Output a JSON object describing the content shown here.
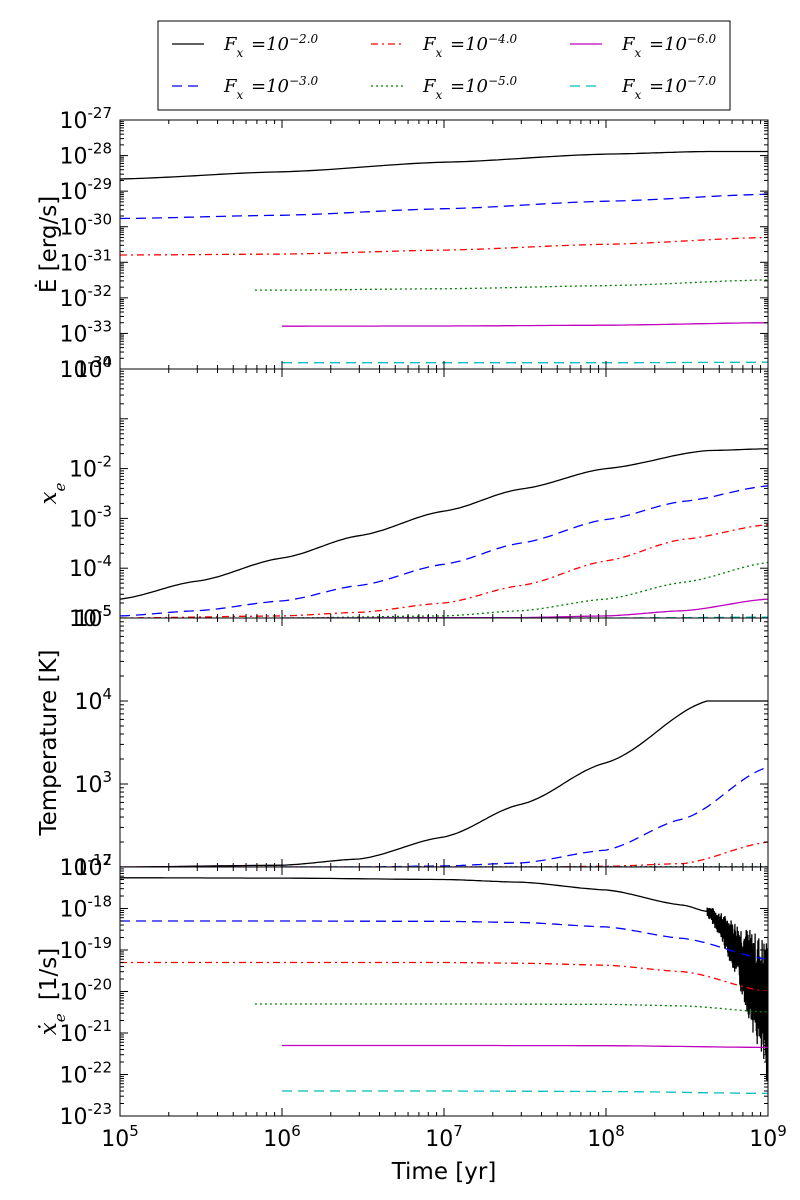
{
  "chart_data": {
    "type": "line",
    "legend": {
      "placement": "top-center",
      "columns": 3,
      "entries": [
        {
          "label": "F_x = 10^{-2.0}",
          "base": "F",
          "sub": "x",
          "exp": "−2.0",
          "color": "#000000",
          "dash": "solid"
        },
        {
          "label": "F_x = 10^{-3.0}",
          "base": "F",
          "sub": "x",
          "exp": "−3.0",
          "color": "#0000ff",
          "dash": "dashed"
        },
        {
          "label": "F_x = 10^{-4.0}",
          "base": "F",
          "sub": "x",
          "exp": "−4.0",
          "color": "#ff0000",
          "dash": "dashdot"
        },
        {
          "label": "F_x = 10^{-5.0}",
          "base": "F",
          "sub": "x",
          "exp": "−5.0",
          "color": "#008000",
          "dash": "dotted"
        },
        {
          "label": "F_x = 10^{-6.0}",
          "base": "F",
          "sub": "x",
          "exp": "−6.0",
          "color": "#bf00bf",
          "dash": "solid"
        },
        {
          "label": "F_x = 10^{-7.0}",
          "base": "F",
          "sub": "x",
          "exp": "−7.0",
          "color": "#00bfbf",
          "dash": "dashed"
        }
      ]
    },
    "xlabel": "Time [yr]",
    "xscale": "log",
    "xlim": [
      100000,
      1000000000
    ],
    "xticks": [
      {
        "value": 100000,
        "label": "10",
        "exp": "5"
      },
      {
        "value": 1000000,
        "label": "10",
        "exp": "6"
      },
      {
        "value": 10000000,
        "label": "10",
        "exp": "7"
      },
      {
        "value": 100000000,
        "label": "10",
        "exp": "8"
      },
      {
        "value": 1000000000,
        "label": "10",
        "exp": "9"
      }
    ],
    "panels": [
      {
        "ylabel": "Ė [erg/s]",
        "yscale": "log",
        "ylim": [
          1e-34,
          1e-27
        ],
        "yticks": [
          {
            "value": 1e-27,
            "exp": "-27"
          },
          {
            "value": 1e-28,
            "exp": "-28"
          },
          {
            "value": 1e-29,
            "exp": "-29"
          },
          {
            "value": 1e-30,
            "exp": "-30"
          },
          {
            "value": 1e-31,
            "exp": "-31"
          },
          {
            "value": 1e-32,
            "exp": "-32"
          },
          {
            "value": 1e-33,
            "exp": "-33"
          },
          {
            "value": 1e-34,
            "exp": "-34"
          }
        ],
        "series": [
          {
            "legend_index": 0,
            "x": [
              100000,
              1000000,
              10000000,
              100000000,
              420000000,
              1000000000
            ],
            "y": [
              2.2e-29,
              3.5e-29,
              6.5e-29,
              1.1e-28,
              1.3e-28,
              1.3e-28
            ]
          },
          {
            "legend_index": 1,
            "x": [
              100000,
              1000000,
              10000000,
              100000000,
              1000000000
            ],
            "y": [
              1.7e-30,
              2.1e-30,
              3.2e-30,
              5.2e-30,
              8.2e-30
            ]
          },
          {
            "legend_index": 2,
            "x": [
              100000,
              1000000,
              10000000,
              100000000,
              1000000000
            ],
            "y": [
              1.6e-31,
              1.7e-31,
              2.2e-31,
              3.2e-31,
              5e-31
            ]
          },
          {
            "legend_index": 3,
            "x": [
              680000,
              1000000,
              10000000,
              100000000,
              1000000000
            ],
            "y": [
              1.65e-32,
              1.65e-32,
              1.8e-32,
              2.2e-32,
              3.2e-32
            ]
          },
          {
            "legend_index": 4,
            "x": [
              1000000,
              10000000,
              100000000,
              1000000000
            ],
            "y": [
              1.6e-33,
              1.62e-33,
              1.7e-33,
              2e-33
            ]
          },
          {
            "legend_index": 5,
            "x": [
              1000000,
              10000000,
              100000000,
              1000000000
            ],
            "y": [
              1.5e-34,
              1.5e-34,
              1.5e-34,
              1.55e-34
            ]
          }
        ]
      },
      {
        "ylabel": "x_e",
        "ylabel_base": "x",
        "ylabel_sub": "e",
        "yscale": "log",
        "ylim": [
          1e-05,
          1
        ],
        "yticks": [
          {
            "value": 1,
            "exp": "0"
          },
          {
            "value": 0.01,
            "exp": "-2"
          },
          {
            "value": 0.001,
            "exp": "-3"
          },
          {
            "value": 0.0001,
            "exp": "-4"
          },
          {
            "value": 1e-05,
            "exp": "-5"
          }
        ],
        "series": [
          {
            "legend_index": 0,
            "x": [
              100000,
              300000,
              1000000,
              3000000,
              10000000,
              30000000,
              100000000,
              420000000,
              1000000000
            ],
            "y": [
              2.4e-05,
              5.5e-05,
              0.00016,
              0.00045,
              0.0014,
              0.0039,
              0.01,
              0.023,
              0.025
            ]
          },
          {
            "legend_index": 1,
            "x": [
              100000,
              300000,
              1000000,
              3000000,
              10000000,
              30000000,
              100000000,
              300000000,
              1000000000
            ],
            "y": [
              1.1e-05,
              1.4e-05,
              2.2e-05,
              4.5e-05,
              0.00012,
              0.00032,
              0.00095,
              0.0022,
              0.0045
            ]
          },
          {
            "legend_index": 2,
            "x": [
              100000,
              1000000,
              3000000,
              10000000,
              30000000,
              100000000,
              300000000,
              1000000000
            ],
            "y": [
              1e-05,
              1.1e-05,
              1.3e-05,
              2e-05,
              4.5e-05,
              0.00014,
              0.00038,
              0.00075
            ]
          },
          {
            "legend_index": 3,
            "x": [
              1000000,
              10000000,
              30000000,
              100000000,
              300000000,
              1000000000
            ],
            "y": [
              1e-05,
              1.1e-05,
              1.4e-05,
              2.4e-05,
              5.2e-05,
              0.00013
            ]
          },
          {
            "legend_index": 4,
            "x": [
              1000000,
              30000000,
              100000000,
              300000000,
              1000000000
            ],
            "y": [
              1e-05,
              1.02e-05,
              1.1e-05,
              1.4e-05,
              2.4e-05
            ]
          },
          {
            "legend_index": 5,
            "x": [
              1000000,
              100000000,
              1000000000
            ],
            "y": [
              1e-05,
              1e-05,
              1.04e-05
            ]
          }
        ]
      },
      {
        "ylabel": "Temperature [K]",
        "yscale": "log",
        "ylim": [
          100,
          100000
        ],
        "yticks": [
          {
            "value": 100000,
            "exp": "5"
          },
          {
            "value": 10000,
            "exp": "4"
          },
          {
            "value": 1000,
            "exp": "3"
          },
          {
            "value": 100,
            "exp": "2"
          }
        ],
        "series": [
          {
            "legend_index": 0,
            "x": [
              100000,
              1000000,
              3000000,
              10000000,
              30000000,
              100000000,
              420000000,
              1000000000
            ],
            "y": [
              100,
              105,
              125,
              230,
              570,
              1800,
              10000,
              10000
            ]
          },
          {
            "legend_index": 1,
            "x": [
              100000,
              3000000,
              10000000,
              30000000,
              100000000,
              300000000,
              1000000000
            ],
            "y": [
              100,
              100,
              103,
              112,
              160,
              380,
              1600
            ]
          },
          {
            "legend_index": 2,
            "x": [
              100000,
              30000000,
              100000000,
              300000000,
              1000000000
            ],
            "y": [
              100,
              100,
              102,
              110,
              200
            ]
          },
          {
            "legend_index": 3,
            "x": [
              680000,
              1000000000
            ],
            "y": [
              100,
              101
            ]
          },
          {
            "legend_index": 4,
            "x": [
              1000000,
              1000000000
            ],
            "y": [
              100,
              100
            ]
          },
          {
            "legend_index": 5,
            "x": [
              1000000,
              1000000000
            ],
            "y": [
              100,
              100
            ]
          }
        ]
      },
      {
        "ylabel": "ẋ_e [1/s]",
        "ylabel_base": "ẋ",
        "ylabel_sub": "e",
        "ylabel_unit": "[1/s]",
        "yscale": "log",
        "ylim": [
          1e-23,
          1e-17
        ],
        "yticks": [
          {
            "value": 1e-17,
            "exp": "-17"
          },
          {
            "value": 1e-18,
            "exp": "-18"
          },
          {
            "value": 1e-19,
            "exp": "-19"
          },
          {
            "value": 1e-20,
            "exp": "-20"
          },
          {
            "value": 1e-21,
            "exp": "-21"
          },
          {
            "value": 1e-22,
            "exp": "-22"
          },
          {
            "value": 1e-23,
            "exp": "-23"
          }
        ],
        "series": [
          {
            "legend_index": 0,
            "x": [
              100000,
              1000000,
              10000000,
              30000000,
              100000000,
              300000000,
              420000000
            ],
            "y": [
              5.5e-18,
              5.4e-18,
              5e-18,
              4.3e-18,
              2.8e-18,
              1.2e-18,
              8.5e-19
            ],
            "noisy_tail": {
              "x_start": 420000000,
              "x_end": 1000000000,
              "center_start": 8.5e-19,
              "center_end": 3e-21,
              "spread_decades_start": 0.15,
              "spread_decades_end": 1.8
            }
          },
          {
            "legend_index": 1,
            "x": [
              100000,
              1000000,
              10000000,
              30000000,
              100000000,
              300000000,
              1000000000
            ],
            "y": [
              5e-19,
              5e-19,
              4.9e-19,
              4.6e-19,
              3.6e-19,
              1.9e-19,
              6e-20
            ]
          },
          {
            "legend_index": 2,
            "x": [
              100000,
              1000000,
              10000000,
              30000000,
              100000000,
              300000000,
              1000000000
            ],
            "y": [
              5e-20,
              5e-20,
              5e-20,
              4.8e-20,
              4.3e-20,
              3e-20,
              1e-20
            ]
          },
          {
            "legend_index": 3,
            "x": [
              680000,
              1000000,
              10000000,
              100000000,
              300000000,
              1000000000
            ],
            "y": [
              5e-21,
              5e-21,
              5e-21,
              4.9e-21,
              4.5e-21,
              3.2e-21
            ]
          },
          {
            "legend_index": 4,
            "x": [
              1000000,
              10000000,
              100000000,
              1000000000
            ],
            "y": [
              5e-22,
              5e-22,
              4.95e-22,
              4.5e-22
            ]
          },
          {
            "legend_index": 5,
            "x": [
              1000000,
              10000000,
              100000000,
              1000000000
            ],
            "y": [
              4e-23,
              4e-23,
              3.9e-23,
              3.5e-23
            ]
          }
        ]
      }
    ]
  }
}
